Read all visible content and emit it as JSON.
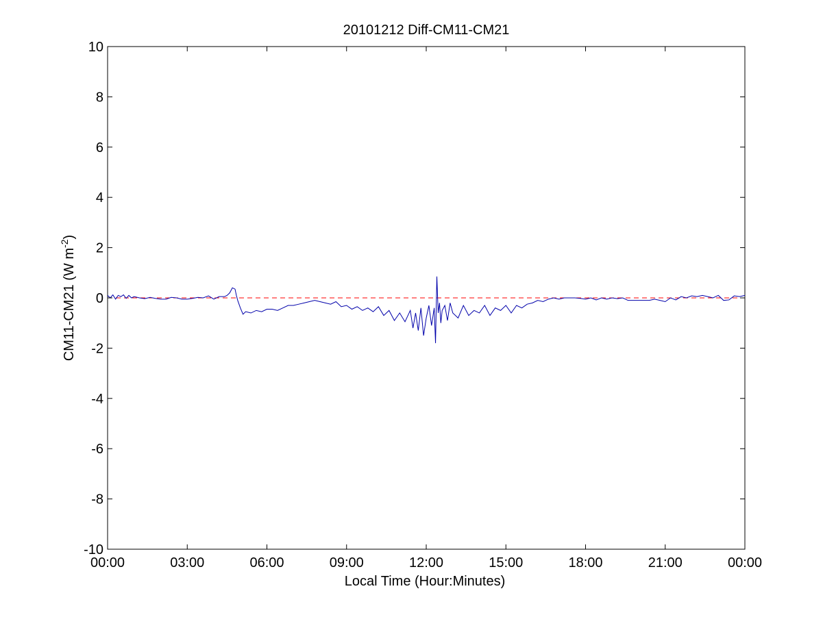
{
  "chart_data": {
    "type": "line",
    "title": "20101212 Diff-CM11-CM21",
    "xlabel": "Local Time (Hour:Minutes)",
    "ylabel": {
      "text": "CM11-CM21 (W m",
      "superscript": "-2",
      "suffix": ")"
    },
    "xlim_hours": [
      0,
      24
    ],
    "ylim": [
      -10,
      10
    ],
    "x_ticks_hours": [
      0,
      3,
      6,
      9,
      12,
      15,
      18,
      21,
      24
    ],
    "x_tick_labels": [
      "00:00",
      "03:00",
      "06:00",
      "09:00",
      "12:00",
      "15:00",
      "18:00",
      "21:00",
      "00:00"
    ],
    "y_ticks": [
      -10,
      -8,
      -6,
      -4,
      -2,
      0,
      2,
      4,
      6,
      8,
      10
    ],
    "y_tick_labels": [
      "-10",
      "-8",
      "-6",
      "-4",
      "-2",
      "0",
      "2",
      "4",
      "6",
      "8",
      "10"
    ],
    "grid": false,
    "reference_line": {
      "y": 0,
      "style": "dashed",
      "color": "#ff0000"
    },
    "series": [
      {
        "color": "#0000aa",
        "x_hours": [
          0.0,
          0.1,
          0.2,
          0.3,
          0.4,
          0.5,
          0.6,
          0.7,
          0.8,
          0.9,
          1.0,
          1.2,
          1.4,
          1.6,
          1.8,
          2.0,
          2.2,
          2.4,
          2.6,
          2.8,
          3.0,
          3.2,
          3.4,
          3.6,
          3.8,
          4.0,
          4.2,
          4.4,
          4.5,
          4.6,
          4.7,
          4.8,
          4.85,
          4.9,
          5.0,
          5.1,
          5.2,
          5.4,
          5.6,
          5.8,
          6.0,
          6.2,
          6.4,
          6.6,
          6.8,
          7.0,
          7.2,
          7.4,
          7.6,
          7.8,
          8.0,
          8.2,
          8.4,
          8.6,
          8.8,
          9.0,
          9.2,
          9.4,
          9.6,
          9.8,
          10.0,
          10.2,
          10.4,
          10.6,
          10.8,
          11.0,
          11.2,
          11.4,
          11.5,
          11.6,
          11.7,
          11.8,
          11.9,
          12.0,
          12.1,
          12.2,
          12.3,
          12.35,
          12.4,
          12.45,
          12.5,
          12.55,
          12.6,
          12.7,
          12.8,
          12.9,
          13.0,
          13.2,
          13.4,
          13.6,
          13.8,
          14.0,
          14.2,
          14.4,
          14.6,
          14.8,
          15.0,
          15.2,
          15.4,
          15.6,
          15.8,
          16.0,
          16.2,
          16.4,
          16.6,
          16.8,
          17.0,
          17.2,
          17.4,
          17.6,
          17.8,
          18.0,
          18.2,
          18.4,
          18.6,
          18.8,
          19.0,
          19.2,
          19.4,
          19.6,
          19.8,
          20.0,
          20.2,
          20.4,
          20.6,
          20.8,
          21.0,
          21.2,
          21.4,
          21.6,
          21.8,
          22.0,
          22.2,
          22.4,
          22.6,
          22.8,
          23.0,
          23.2,
          23.4,
          23.6,
          23.8,
          24.0
        ],
        "y": [
          0.1,
          0.0,
          0.12,
          -0.05,
          0.1,
          0.05,
          0.12,
          -0.02,
          0.1,
          0.0,
          0.05,
          0.0,
          -0.03,
          0.02,
          -0.02,
          -0.05,
          -0.05,
          0.02,
          0.0,
          -0.05,
          -0.05,
          -0.02,
          0.02,
          0.0,
          0.08,
          -0.05,
          0.05,
          0.05,
          0.1,
          0.2,
          0.4,
          0.35,
          0.1,
          -0.1,
          -0.4,
          -0.65,
          -0.55,
          -0.6,
          -0.5,
          -0.55,
          -0.45,
          -0.45,
          -0.5,
          -0.4,
          -0.3,
          -0.3,
          -0.25,
          -0.2,
          -0.15,
          -0.1,
          -0.15,
          -0.2,
          -0.25,
          -0.15,
          -0.35,
          -0.3,
          -0.45,
          -0.35,
          -0.5,
          -0.4,
          -0.55,
          -0.35,
          -0.7,
          -0.5,
          -0.9,
          -0.6,
          -0.95,
          -0.5,
          -1.2,
          -0.6,
          -1.3,
          -0.4,
          -1.5,
          -0.8,
          -0.3,
          -1.1,
          -0.4,
          -1.8,
          0.85,
          -0.6,
          -0.2,
          -1.0,
          -0.5,
          -0.3,
          -0.9,
          -0.2,
          -0.6,
          -0.8,
          -0.3,
          -0.7,
          -0.5,
          -0.6,
          -0.3,
          -0.7,
          -0.4,
          -0.5,
          -0.3,
          -0.6,
          -0.3,
          -0.4,
          -0.25,
          -0.2,
          -0.1,
          -0.15,
          -0.05,
          0.0,
          -0.05,
          0.0,
          0.0,
          0.0,
          -0.02,
          -0.05,
          0.0,
          -0.08,
          0.0,
          -0.05,
          0.0,
          -0.03,
          0.0,
          -0.1,
          -0.1,
          -0.1,
          -0.1,
          -0.1,
          -0.05,
          -0.1,
          -0.15,
          0.0,
          -0.08,
          0.05,
          0.0,
          0.08,
          0.05,
          0.1,
          0.05,
          0.0,
          0.1,
          -0.1,
          -0.08,
          0.08,
          0.05,
          0.1
        ]
      }
    ]
  }
}
